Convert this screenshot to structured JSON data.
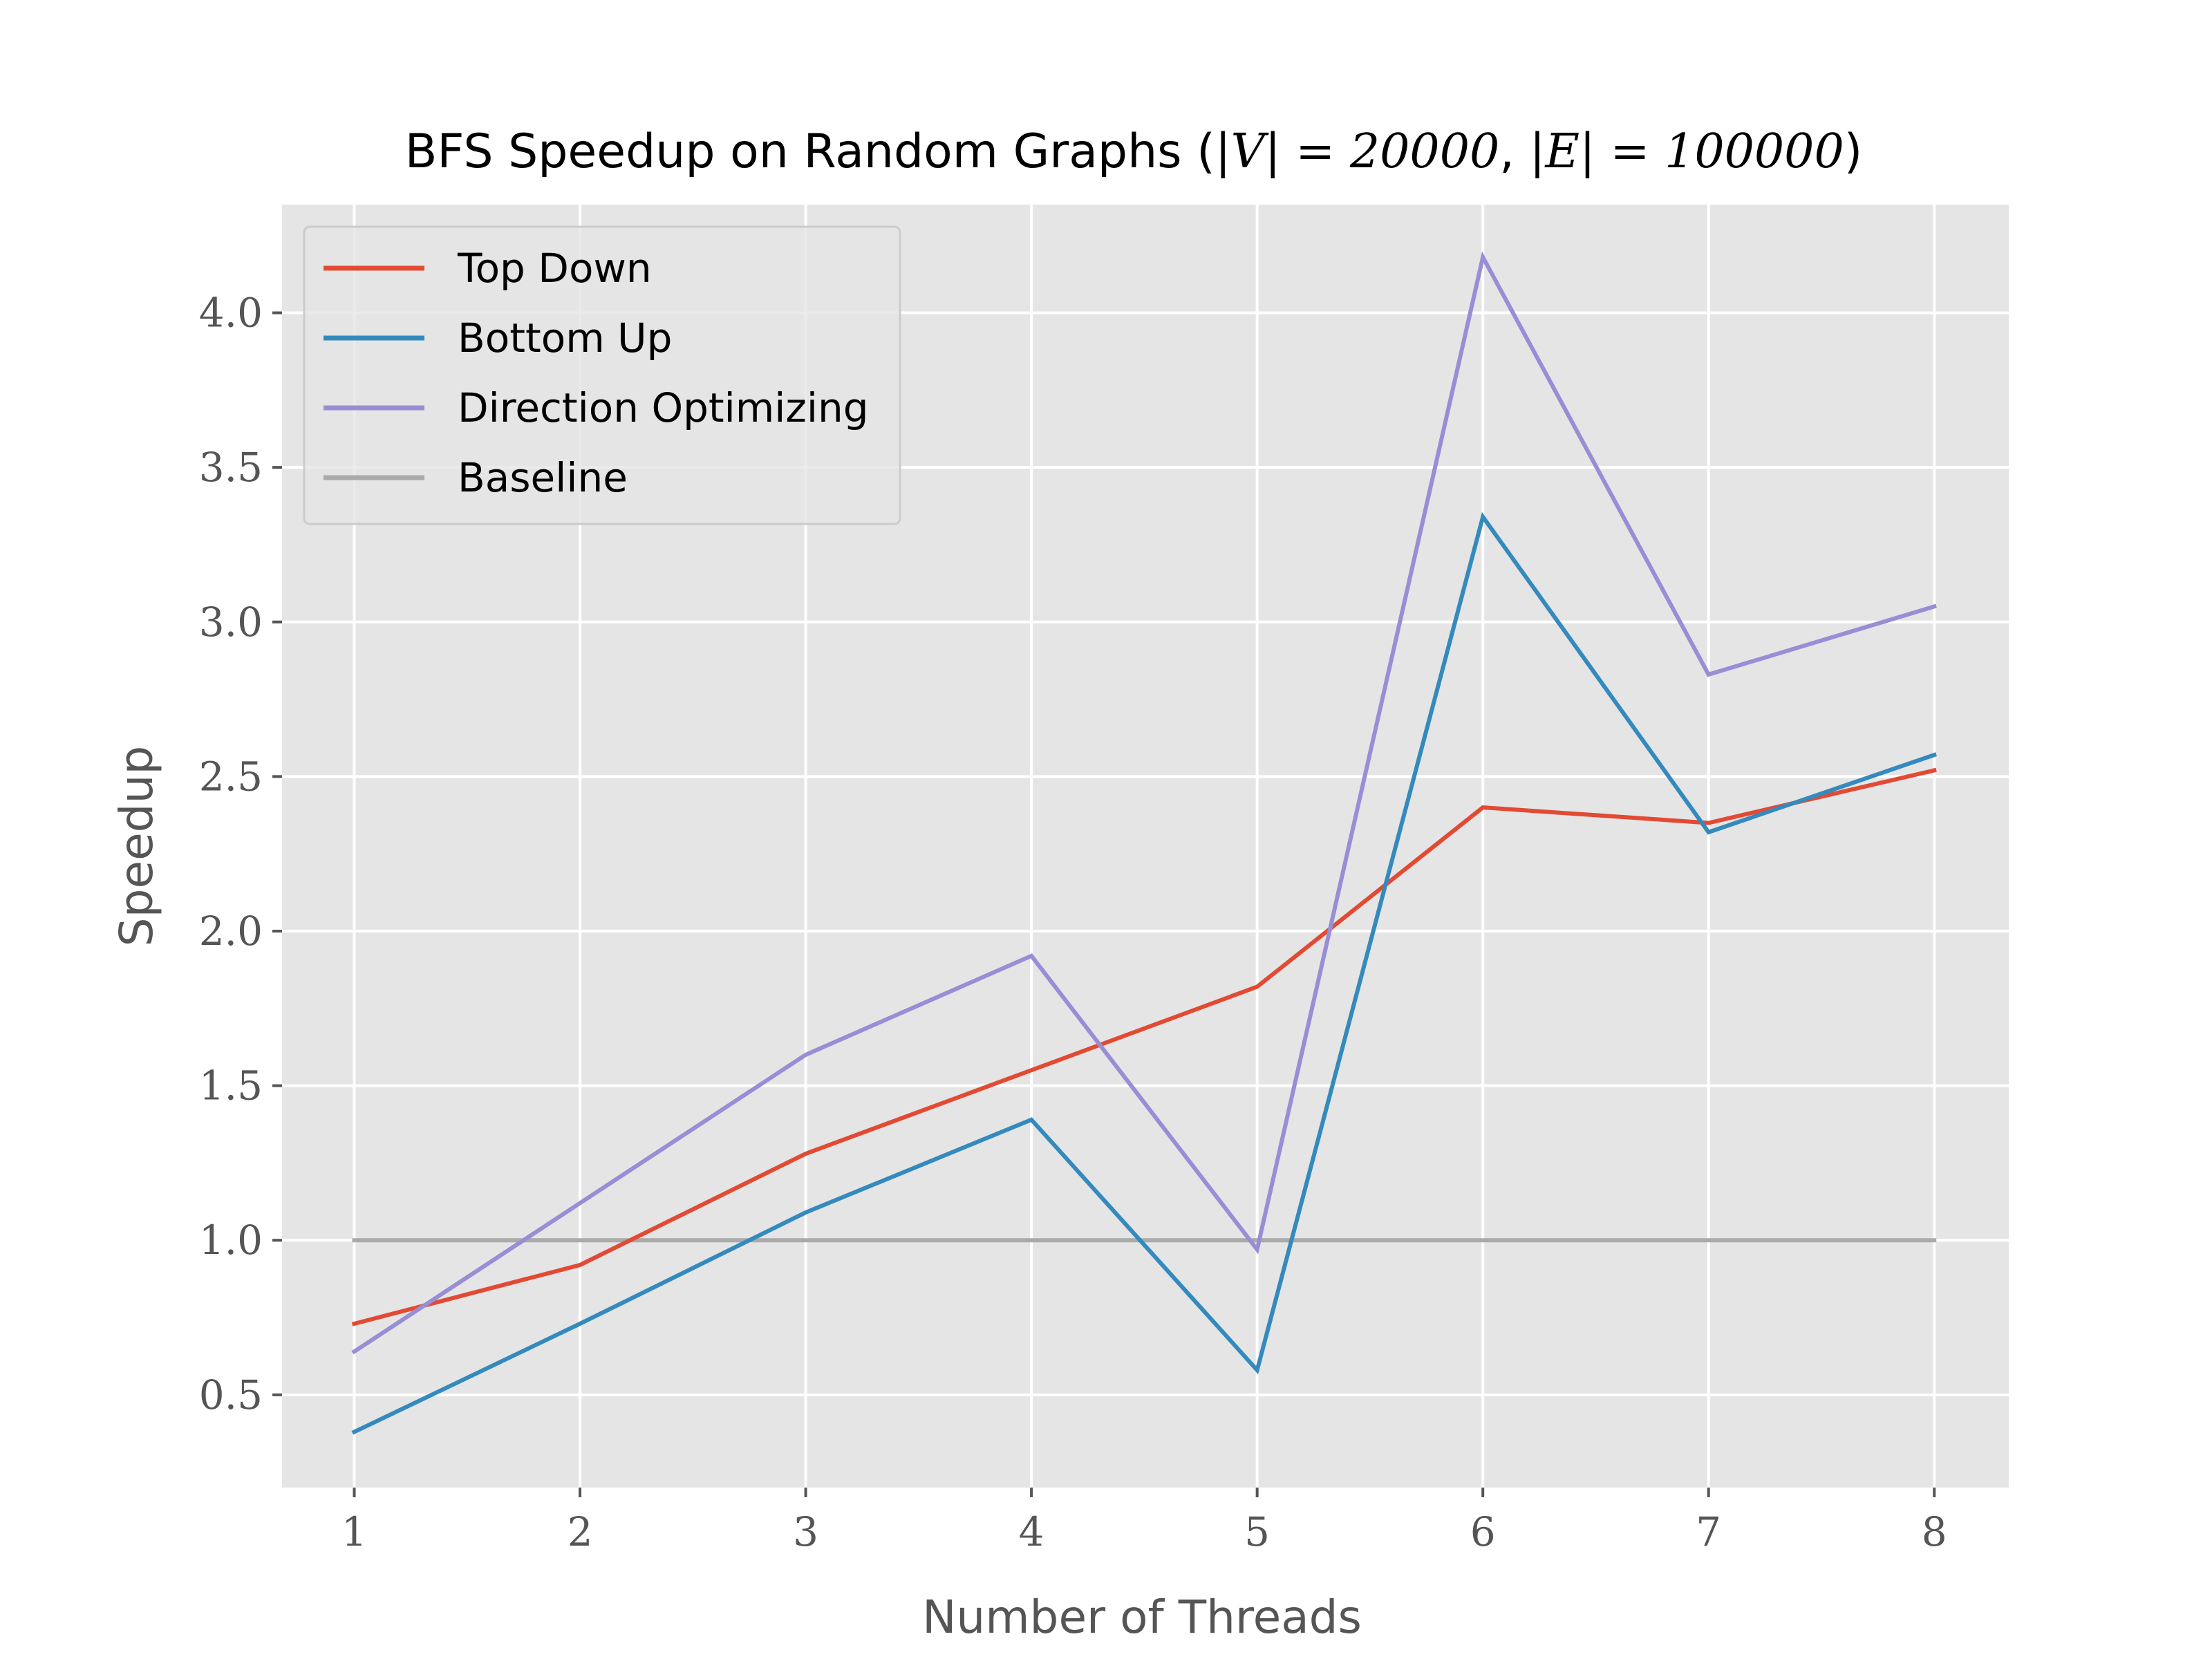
{
  "chart_data": {
    "type": "line",
    "title": {
      "prefix": "BFS Speedup on Random Graphs (",
      "v_expr": "|V| = 20000",
      "separator": ", ",
      "e_expr": "|E| = 100000",
      "suffix": ")"
    },
    "xlabel": "Number of Threads",
    "ylabel": "Speedup",
    "x": [
      1,
      2,
      3,
      4,
      5,
      6,
      7,
      8
    ],
    "xticks": [
      "1",
      "2",
      "3",
      "4",
      "5",
      "6",
      "7",
      "8"
    ],
    "yticks": [
      "0.5",
      "1.0",
      "1.5",
      "2.0",
      "2.5",
      "3.0",
      "3.5",
      "4.0"
    ],
    "yticks_values": [
      0.5,
      1.0,
      1.5,
      2.0,
      2.5,
      3.0,
      3.5,
      4.0
    ],
    "xlim": [
      0.68,
      8.33
    ],
    "ylim": [
      0.2,
      4.35
    ],
    "grid": true,
    "legend_position": "top-left",
    "background": "#e5e5e5",
    "series": [
      {
        "name": "Top Down",
        "color": "#e24a33",
        "values": [
          0.73,
          0.92,
          1.28,
          1.55,
          1.82,
          2.4,
          2.35,
          2.52
        ]
      },
      {
        "name": "Bottom Up",
        "color": "#348abd",
        "values": [
          0.38,
          0.73,
          1.09,
          1.39,
          0.58,
          3.34,
          2.32,
          2.57
        ]
      },
      {
        "name": "Direction Optimizing",
        "color": "#988ed5",
        "values": [
          0.64,
          1.12,
          1.6,
          1.92,
          0.97,
          4.18,
          2.83,
          3.05
        ]
      },
      {
        "name": "Baseline",
        "color": "#aaaaaa",
        "values": [
          1.0,
          1.0,
          1.0,
          1.0,
          1.0,
          1.0,
          1.0,
          1.0
        ]
      }
    ]
  }
}
